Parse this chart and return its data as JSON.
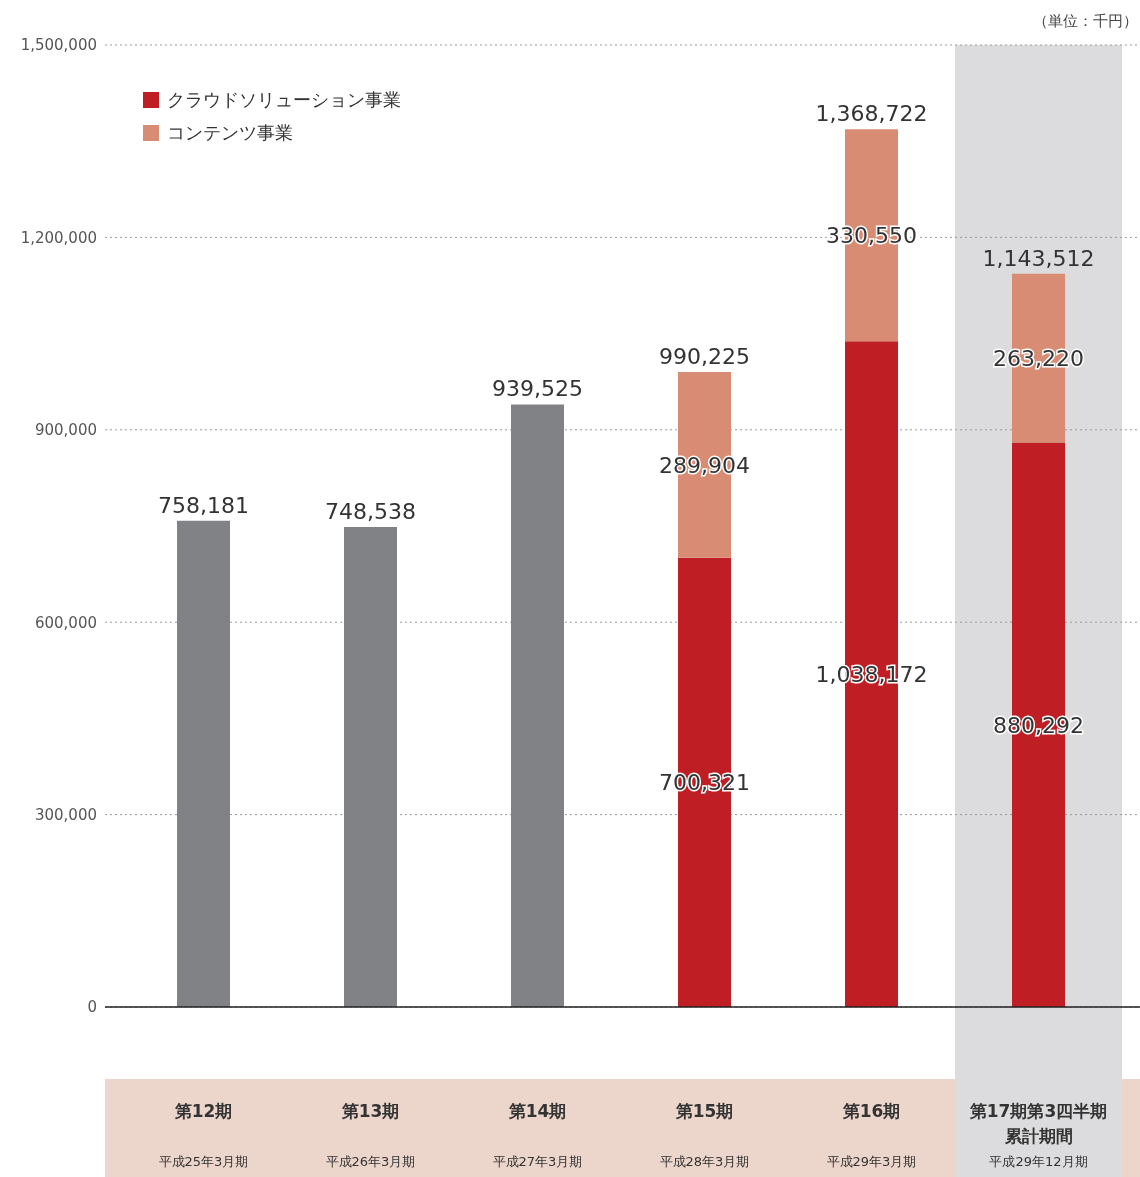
{
  "chart_data": {
    "type": "bar",
    "stacked": true,
    "categories": [
      "第12期",
      "第13期",
      "第14期",
      "第15期",
      "第16期",
      "第17期第3四半期累計期間"
    ],
    "series": [
      {
        "color": "#818286",
        "values": [
          758181,
          748538,
          939525,
          null,
          null,
          null
        ]
      },
      {
        "name": "クラウドソリューション事業",
        "color": "#be1e24",
        "values": [
          null,
          null,
          null,
          700321,
          1038172,
          880292
        ],
        "value_labels": [
          null,
          null,
          null,
          "700,321",
          "1,038,172",
          "880,292"
        ]
      },
      {
        "name": "コンテンツ事業",
        "color": "#d98c74",
        "values": [
          null,
          null,
          null,
          289904,
          330550,
          263220
        ],
        "value_labels": [
          null,
          null,
          null,
          "289,904",
          "330,550",
          "263,220"
        ]
      }
    ],
    "totals": [
      "758,181",
      "748,538",
      "939,525",
      "990,225",
      "1,368,722",
      "1,143,512"
    ],
    "ylim": [
      0,
      1500000
    ],
    "yticks": [
      {
        "value": 0,
        "label": "0"
      },
      {
        "value": 300000,
        "label": "300,000"
      },
      {
        "value": 600000,
        "label": "600,000"
      },
      {
        "value": 900000,
        "label": "900,000"
      },
      {
        "value": 1200000,
        "label": "1,200,000"
      },
      {
        "value": 1500000,
        "label": "1,500,000"
      }
    ],
    "grid": "y",
    "legend": "top left",
    "bands": [
      {
        "axis": "x",
        "from": "第17期第3四半期累計期間",
        "to": "第17期第3四半期累計期間",
        "color": "#dcdcde"
      }
    ],
    "annotations": [
      "（単位：千円）",
      "平成25年3月期",
      "平成26年3月期",
      "平成27年3月期",
      "平成28年3月期",
      "平成29年3月期",
      "平成29年12月期"
    ]
  }
}
